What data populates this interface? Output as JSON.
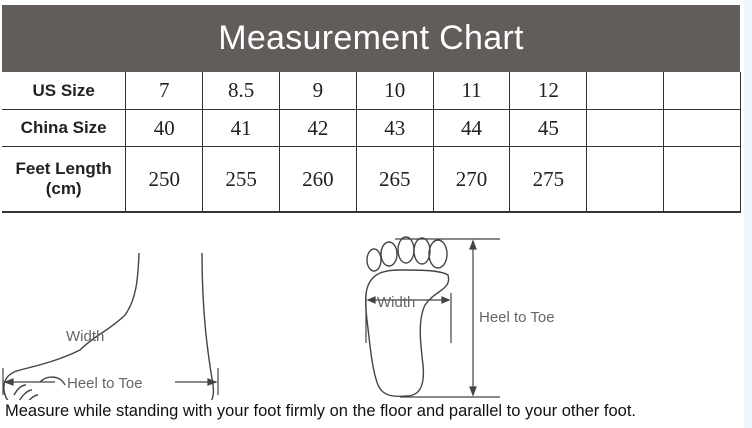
{
  "title": "Measurement Chart",
  "table": {
    "rows": [
      {
        "label": "US Size",
        "values": [
          "7",
          "8.5",
          "9",
          "10",
          "11",
          "12",
          "",
          ""
        ]
      },
      {
        "label": "China Size",
        "values": [
          "40",
          "41",
          "42",
          "43",
          "44",
          "45",
          "",
          ""
        ]
      },
      {
        "label_line1": "Feet Length",
        "label_line2": "(cm)",
        "values": [
          "250",
          "255",
          "260",
          "265",
          "270",
          "275",
          "",
          ""
        ]
      }
    ]
  },
  "diagram": {
    "side_width": "Width",
    "side_length": "Heel to Toe",
    "sole_width": "Width",
    "sole_length": "Heel to Toe"
  },
  "note": "Measure while standing with your foot firmly on the floor and parallel to your other foot."
}
